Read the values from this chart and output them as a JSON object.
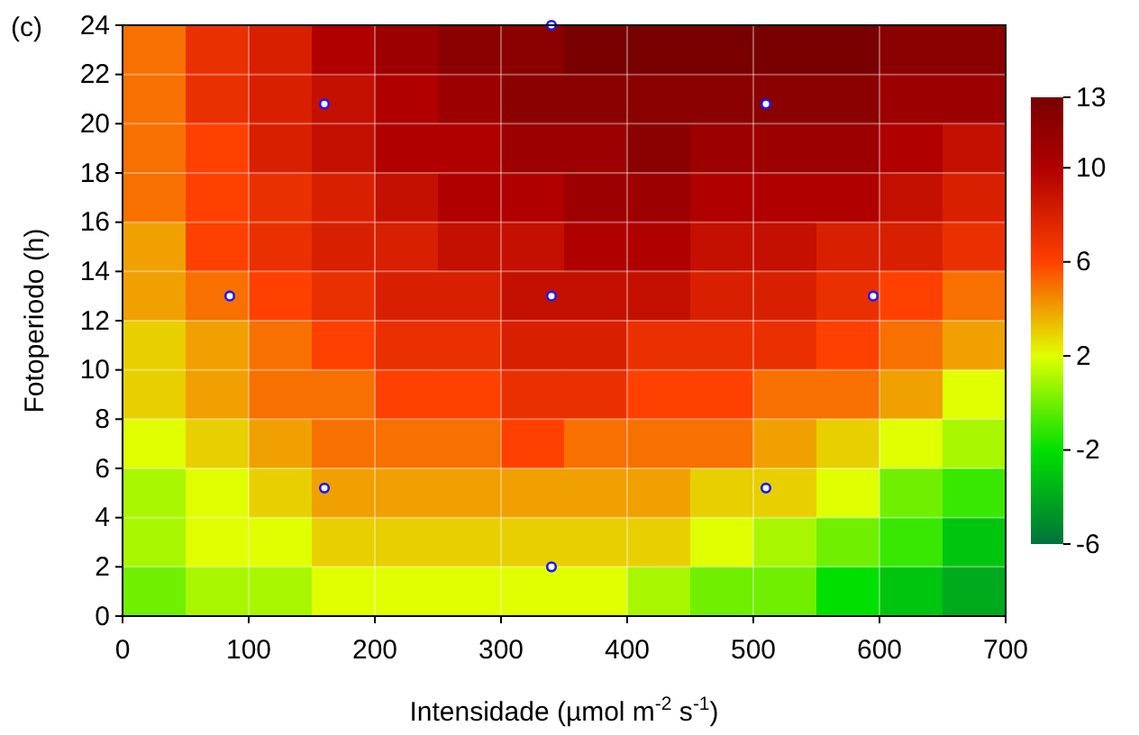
{
  "chart_data": {
    "type": "heatmap",
    "annotations": [
      "(c)"
    ],
    "xlabel": "Intensidade (µmol m$^{-2}$ s$^{-1}$)",
    "ylabel": "Fotoperiodo (h)",
    "x": [
      25,
      75,
      125,
      175,
      225,
      275,
      325,
      375,
      425,
      475,
      525,
      575,
      625,
      675
    ],
    "y": [
      23,
      21,
      19,
      17,
      15,
      13,
      11,
      9,
      7,
      5,
      3,
      1
    ],
    "cells": [
      [
        5,
        7,
        8,
        10,
        11,
        12,
        12,
        13,
        13,
        13,
        13,
        13,
        12,
        12
      ],
      [
        5,
        7,
        8,
        9,
        10,
        11,
        12,
        12,
        12,
        12,
        12,
        12,
        11,
        11
      ],
      [
        5,
        6,
        8,
        9,
        10,
        10,
        11,
        11,
        12,
        11,
        11,
        11,
        10,
        9
      ],
      [
        5,
        6,
        7,
        8,
        9,
        10,
        10,
        11,
        11,
        10,
        10,
        10,
        9,
        8
      ],
      [
        4,
        6,
        7,
        8,
        8,
        9,
        9,
        10,
        10,
        9,
        9,
        8,
        8,
        7
      ],
      [
        4,
        5,
        6,
        7,
        8,
        8,
        9,
        9,
        9,
        8,
        8,
        7,
        6,
        5
      ],
      [
        3,
        4,
        5,
        6,
        7,
        7,
        8,
        8,
        7,
        7,
        7,
        6,
        5,
        4
      ],
      [
        3,
        4,
        5,
        5,
        6,
        6,
        7,
        7,
        6,
        6,
        5,
        5,
        4,
        2
      ],
      [
        2,
        3,
        4,
        5,
        5,
        5,
        6,
        5,
        5,
        5,
        4,
        3,
        2,
        1
      ],
      [
        1,
        2,
        3,
        4,
        4,
        4,
        4,
        4,
        4,
        3,
        3,
        2,
        0,
        -1
      ],
      [
        1,
        2,
        2,
        3,
        3,
        3,
        3,
        3,
        3,
        2,
        1,
        0,
        -1,
        -3
      ],
      [
        0,
        1,
        1,
        2,
        2,
        2,
        2,
        2,
        1,
        0,
        0,
        -2,
        -3,
        -4
      ]
    ],
    "clim": [
      -6,
      13
    ],
    "cticks": [
      -6,
      -2,
      2,
      6,
      10,
      13
    ],
    "colors": [
      "#00733a",
      "#00e000",
      "#e0ff00",
      "#ff4000",
      "#b00000",
      "#780000"
    ],
    "grid": true,
    "marker": "circle",
    "series": [
      {
        "type": "scatter",
        "color": "#1a1aff",
        "x": [
          340,
          160,
          510,
          85,
          340,
          595,
          160,
          510,
          340
        ],
        "values": [
          24,
          20.8,
          20.8,
          13,
          13,
          13,
          5.2,
          5.2,
          2
        ]
      }
    ],
    "xlim": [
      0,
      700
    ],
    "xticks": [
      0,
      100,
      200,
      300,
      400,
      500,
      600,
      700
    ],
    "ylim": [
      0,
      24
    ],
    "yticks": [
      0,
      2,
      4,
      6,
      8,
      10,
      12,
      14,
      16,
      18,
      20,
      22,
      24
    ]
  }
}
